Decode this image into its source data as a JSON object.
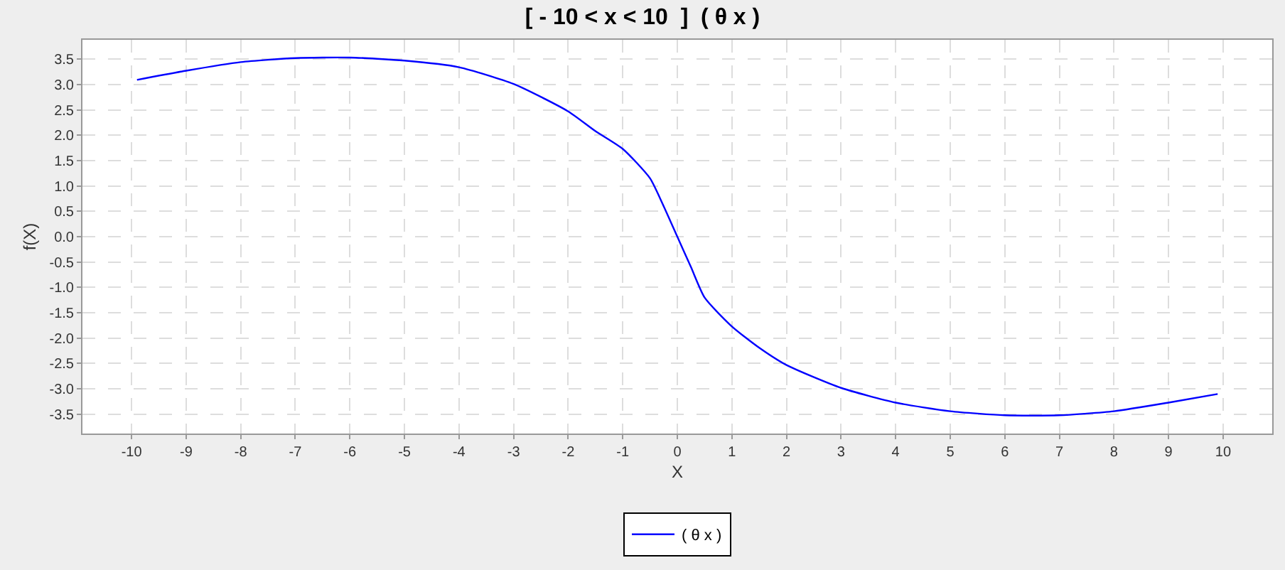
{
  "chart_data": {
    "type": "line",
    "title": "[ - 10 < x < 10  ]  ( θ x )",
    "xlabel": "X",
    "ylabel": "f(X)",
    "series": [
      {
        "name": "( θ x )",
        "color": "#0000ff",
        "x": [
          -9.9,
          -9,
          -8,
          -7,
          -6,
          -5,
          -4,
          -3,
          -2,
          -1.5,
          -1,
          -0.5,
          -0.25,
          0,
          0.25,
          0.5,
          1,
          1.5,
          2,
          3,
          4,
          5,
          6,
          7,
          8,
          9,
          9.9
        ],
        "values": [
          3.09,
          3.27,
          3.44,
          3.52,
          3.53,
          3.47,
          3.34,
          3.01,
          2.47,
          2.08,
          1.73,
          1.15,
          0.6,
          0,
          -0.6,
          -1.2,
          -1.77,
          -2.19,
          -2.53,
          -2.98,
          -3.27,
          -3.44,
          -3.52,
          -3.52,
          -3.44,
          -3.27,
          -3.1
        ]
      }
    ],
    "xlim": [
      -10.9,
      10.9
    ],
    "ylim": [
      -3.88,
      3.88
    ],
    "xticks": [
      -10,
      -9,
      -8,
      -7,
      -6,
      -5,
      -4,
      -3,
      -2,
      -1,
      0,
      1,
      2,
      3,
      4,
      5,
      6,
      7,
      8,
      9,
      10
    ],
    "yticks": [
      {
        "value": -3.5,
        "label": "-3.5"
      },
      {
        "value": -3,
        "label": "-3.0"
      },
      {
        "value": -2.5,
        "label": "-2.5"
      },
      {
        "value": -2,
        "label": "-2.0"
      },
      {
        "value": -1.5,
        "label": "-1.5"
      },
      {
        "value": -1,
        "label": "-1.0"
      },
      {
        "value": -0.5,
        "label": "-0.5"
      },
      {
        "value": 0,
        "label": "0.0"
      },
      {
        "value": 0.5,
        "label": "0.5"
      },
      {
        "value": 1,
        "label": "1.0"
      },
      {
        "value": 1.5,
        "label": "1.5"
      },
      {
        "value": 2,
        "label": "2.0"
      },
      {
        "value": 2.5,
        "label": "2.5"
      },
      {
        "value": 3,
        "label": "3.0"
      },
      {
        "value": 3.5,
        "label": "3.5"
      }
    ],
    "grid": true,
    "legend": "bottom",
    "line_style": "solid"
  }
}
